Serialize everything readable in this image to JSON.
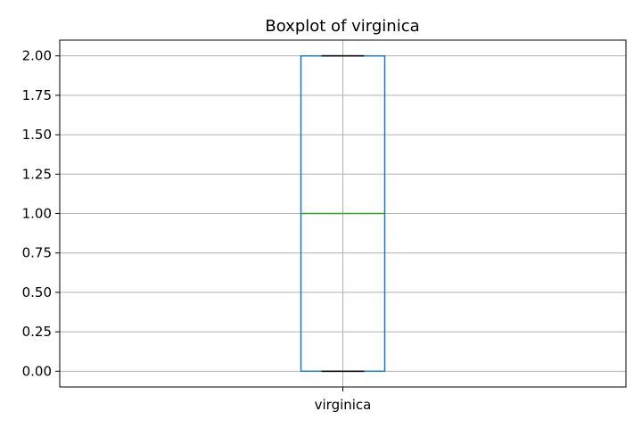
{
  "chart_data": {
    "type": "box",
    "title": "Boxplot of virginica",
    "xlabel": "",
    "ylabel": "",
    "categories": [
      "virginica"
    ],
    "box": {
      "whisker_low": 0.0,
      "q1": 0.0,
      "median": 1.0,
      "q3": 2.0,
      "whisker_high": 2.0
    },
    "ylim": [
      -0.1,
      2.1
    ],
    "yticks": [
      0.0,
      0.25,
      0.5,
      0.75,
      1.0,
      1.25,
      1.5,
      1.75,
      2.0
    ],
    "ytick_labels": [
      "0.00",
      "0.25",
      "0.50",
      "0.75",
      "1.00",
      "1.25",
      "1.50",
      "1.75",
      "2.00"
    ],
    "grid": true,
    "colors": {
      "box": "#1f77b4",
      "median": "#2ca02c",
      "caps": "#000000",
      "grid": "#b0b0b0"
    }
  }
}
